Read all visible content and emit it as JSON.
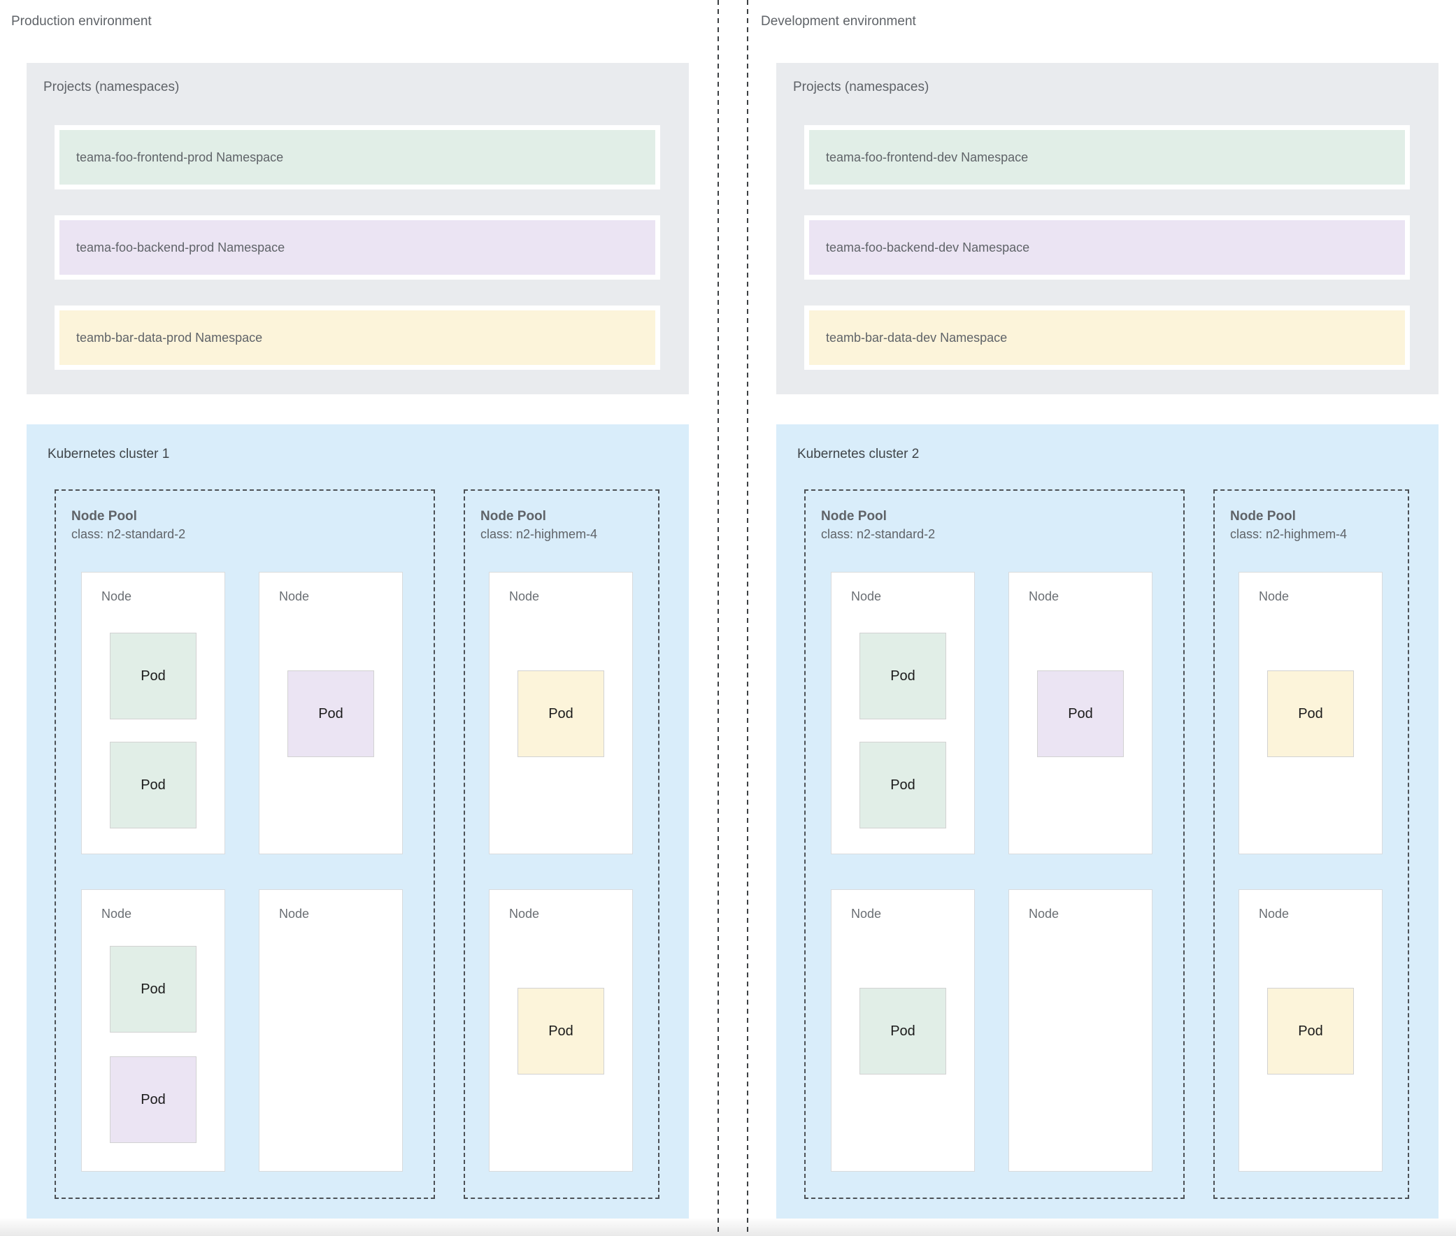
{
  "colors": {
    "green_namespace": "#e1eee7",
    "purple_namespace": "#ebe4f3",
    "yellow_namespace": "#fcf4da",
    "cluster_background": "#d9edfa",
    "projects_background": "#e9ebee",
    "divider": "#3c4043"
  },
  "environments": [
    {
      "title": "Production environment",
      "projects": {
        "label": "Projects (namespaces)",
        "namespaces": [
          {
            "label": "teama-foo-frontend-prod Namespace",
            "color": "#e1eee7"
          },
          {
            "label": "teama-foo-backend-prod Namespace",
            "color": "#ebe4f3"
          },
          {
            "label": "teamb-bar-data-prod Namespace",
            "color": "#fcf4da"
          }
        ]
      },
      "cluster": {
        "label": "Kubernetes cluster 1",
        "pools": [
          {
            "title": "Node Pool",
            "class_line": "class: n2-standard-2",
            "nodes": [
              {
                "label": "Node",
                "pods": [
                  {
                    "label": "Pod",
                    "color": "#e1eee7"
                  },
                  {
                    "label": "Pod",
                    "color": "#e1eee7"
                  }
                ]
              },
              {
                "label": "Node",
                "pods": [
                  {
                    "label": "Pod",
                    "color": "#ebe4f3"
                  }
                ]
              },
              {
                "label": "Node",
                "pods": [
                  {
                    "label": "Pod",
                    "color": "#e1eee7"
                  },
                  {
                    "label": "Pod",
                    "color": "#ebe4f3"
                  }
                ]
              },
              {
                "label": "Node",
                "pods": []
              }
            ]
          },
          {
            "title": "Node Pool",
            "class_line": "class: n2-highmem-4",
            "nodes": [
              {
                "label": "Node",
                "pods": [
                  {
                    "label": "Pod",
                    "color": "#fcf4da"
                  }
                ]
              },
              {
                "label": "Node",
                "pods": [
                  {
                    "label": "Pod",
                    "color": "#fcf4da"
                  }
                ]
              }
            ]
          }
        ]
      }
    },
    {
      "title": "Development environment",
      "projects": {
        "label": "Projects (namespaces)",
        "namespaces": [
          {
            "label": "teama-foo-frontend-dev Namespace",
            "color": "#e1eee7"
          },
          {
            "label": "teama-foo-backend-dev Namespace",
            "color": "#ebe4f3"
          },
          {
            "label": "teamb-bar-data-dev Namespace",
            "color": "#fcf4da"
          }
        ]
      },
      "cluster": {
        "label": "Kubernetes cluster 2",
        "pools": [
          {
            "title": "Node Pool",
            "class_line": "class: n2-standard-2",
            "nodes": [
              {
                "label": "Node",
                "pods": [
                  {
                    "label": "Pod",
                    "color": "#e1eee7"
                  },
                  {
                    "label": "Pod",
                    "color": "#e1eee7"
                  }
                ]
              },
              {
                "label": "Node",
                "pods": [
                  {
                    "label": "Pod",
                    "color": "#ebe4f3"
                  }
                ]
              },
              {
                "label": "Node",
                "pods": [
                  {
                    "label": "Pod",
                    "color": "#e1eee7"
                  }
                ]
              },
              {
                "label": "Node",
                "pods": []
              }
            ]
          },
          {
            "title": "Node Pool",
            "class_line": "class: n2-highmem-4",
            "nodes": [
              {
                "label": "Node",
                "pods": [
                  {
                    "label": "Pod",
                    "color": "#fcf4da"
                  }
                ]
              },
              {
                "label": "Node",
                "pods": [
                  {
                    "label": "Pod",
                    "color": "#fcf4da"
                  }
                ]
              }
            ]
          }
        ]
      }
    }
  ]
}
